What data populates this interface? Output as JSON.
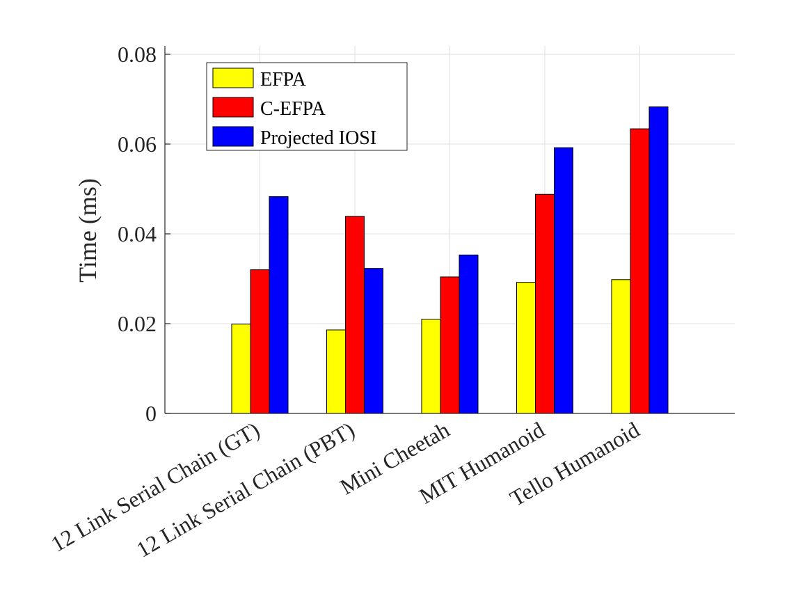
{
  "chart_data": {
    "type": "bar",
    "title": "",
    "xlabel": "",
    "ylabel": "Time (ms)",
    "ylim": [
      0,
      0.08
    ],
    "yticks": [
      0,
      0.02,
      0.04,
      0.06,
      0.08
    ],
    "ytick_labels": [
      "0",
      "0.02",
      "0.04",
      "0.06",
      "0.08"
    ],
    "categories": [
      "12 Link Serial Chain (GT)",
      "12 Link Serial Chain (PBT)",
      "Mini Cheetah",
      "MIT Humanoid",
      "Tello Humanoid"
    ],
    "series": [
      {
        "name": "EFPA",
        "color": "#ffff00",
        "values": [
          0.0199,
          0.0186,
          0.021,
          0.0292,
          0.0298
        ]
      },
      {
        "name": "C-EFPA",
        "color": "#ff0000",
        "values": [
          0.032,
          0.0439,
          0.0304,
          0.0488,
          0.0634
        ]
      },
      {
        "name": "Projected IOSI",
        "color": "#0000ff",
        "values": [
          0.0483,
          0.0323,
          0.0353,
          0.0592,
          0.0683
        ]
      }
    ],
    "grid": true,
    "legend_position": "top-left"
  }
}
